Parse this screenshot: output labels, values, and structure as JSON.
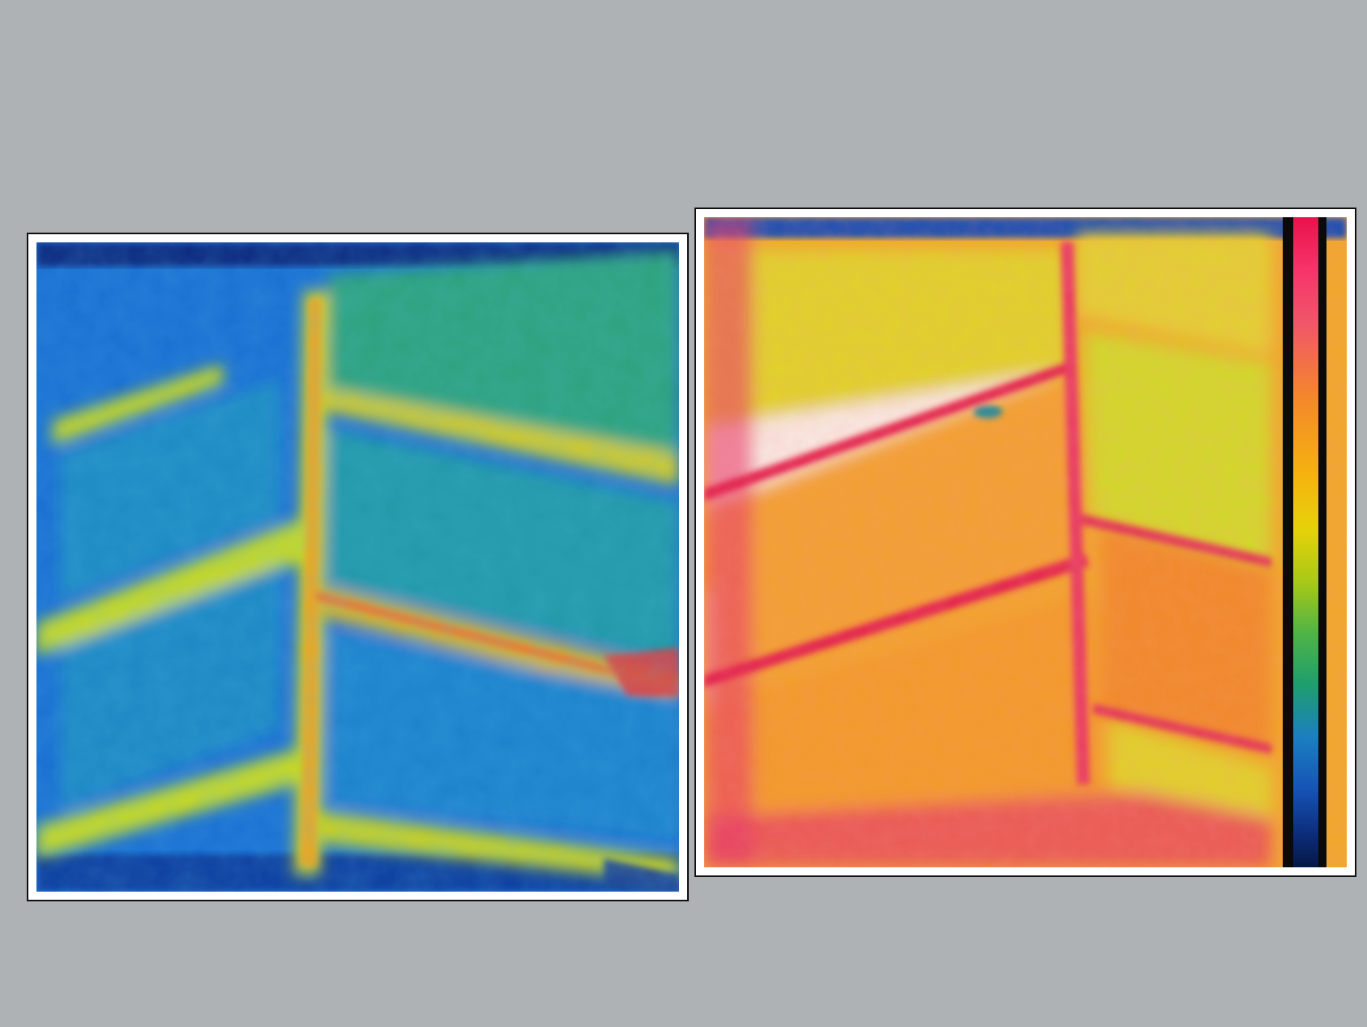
{
  "image": {
    "kind": "photo-comparison",
    "panels": [
      {
        "id": "thermal-image-cool",
        "palette": "blue-green-yellow"
      },
      {
        "id": "thermal-image-warm",
        "palette": "red-orange-yellow-white",
        "has_color_scale": true
      }
    ],
    "colors": {
      "background": "#aeb2b5",
      "frame": "#ffffff",
      "border": "#111111"
    }
  }
}
